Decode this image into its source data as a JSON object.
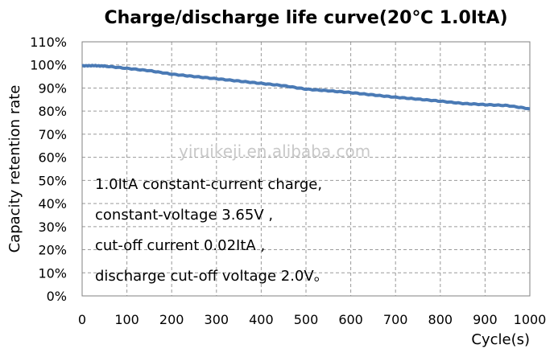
{
  "chart_data": {
    "type": "line",
    "title": "Charge/discharge life curve(20℃ 1.0ItA)",
    "xlabel": "Cycle(s)",
    "ylabel": "Capacity retention rate",
    "xlim": [
      0,
      1000
    ],
    "ylim": [
      0,
      110
    ],
    "x_ticks": [
      "0",
      "100",
      "200",
      "300",
      "400",
      "500",
      "600",
      "700",
      "800",
      "900",
      "1000"
    ],
    "y_ticks": [
      "0%",
      "10%",
      "20%",
      "30%",
      "40%",
      "50%",
      "60%",
      "70%",
      "80%",
      "90%",
      "100%",
      "110%"
    ],
    "grid": true,
    "legend": "none",
    "series_color": "#4a7ab5",
    "x": [
      0,
      25,
      50,
      100,
      150,
      200,
      250,
      300,
      350,
      400,
      450,
      500,
      550,
      600,
      650,
      700,
      750,
      800,
      850,
      900,
      950,
      1000
    ],
    "y": [
      99.6,
      99.7,
      99.5,
      98.5,
      97.5,
      96.0,
      95.0,
      94.0,
      93.0,
      92.0,
      91.0,
      89.5,
      88.8,
      88.0,
      87.0,
      86.0,
      85.2,
      84.3,
      83.3,
      82.8,
      82.4,
      81.0
    ],
    "annotation": [
      "1.0ItA constant-current charge,",
      "constant-voltage 3.65V ,",
      "cut-off current 0.02ItA ,",
      "discharge cut-off voltage 2.0V。"
    ],
    "watermark": "yiruikeji.en.alibaba.com"
  }
}
